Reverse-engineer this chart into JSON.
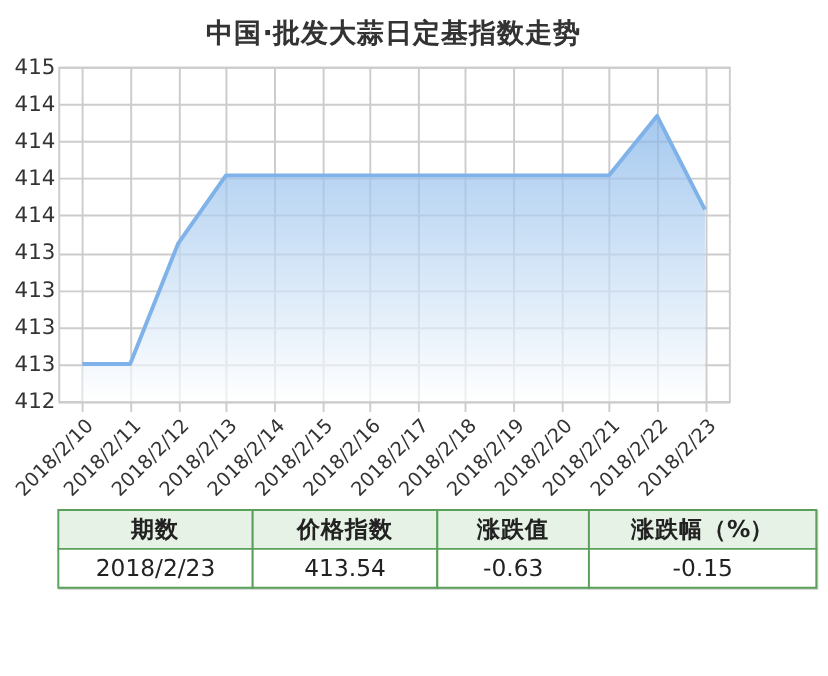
{
  "chart_data": {
    "type": "area",
    "title": "中国·批发大蒜日定基指数走势",
    "categories": [
      "2018/2/10",
      "2018/2/11",
      "2018/2/12",
      "2018/2/13",
      "2018/2/14",
      "2018/2/15",
      "2018/2/16",
      "2018/2/17",
      "2018/2/18",
      "2018/2/19",
      "2018/2/20",
      "2018/2/21",
      "2018/2/22",
      "2018/2/23"
    ],
    "values": [
      412.5,
      412.5,
      413.31,
      413.77,
      413.77,
      413.77,
      413.77,
      413.77,
      413.77,
      413.77,
      413.77,
      413.77,
      414.17,
      413.54
    ],
    "color": "#7fb2e8",
    "ylim": [
      412.25,
      414.5
    ],
    "yticks": [
      {
        "value": 412.25,
        "label": "412"
      },
      {
        "value": 412.5,
        "label": "413"
      },
      {
        "value": 412.75,
        "label": "413"
      },
      {
        "value": 413.0,
        "label": "413"
      },
      {
        "value": 413.25,
        "label": "413"
      },
      {
        "value": 413.5,
        "label": "414"
      },
      {
        "value": 413.75,
        "label": "414"
      },
      {
        "value": 414.0,
        "label": "414"
      },
      {
        "value": 414.25,
        "label": "414"
      },
      {
        "value": 414.5,
        "label": "415"
      }
    ],
    "grid": true,
    "annotations": [
      "期数",
      "价格指数",
      "涨跌值",
      "涨跌幅（%）",
      "2018/2/23",
      "413.54",
      "-0.63",
      "-0.15"
    ]
  }
}
